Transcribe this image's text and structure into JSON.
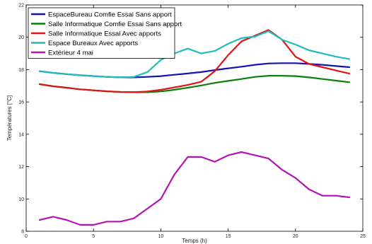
{
  "chart_data": {
    "type": "line",
    "title": "",
    "xlabel": "Temps (h)",
    "ylabel": "Températures [°C]",
    "xlim": [
      0,
      25
    ],
    "ylim": [
      8,
      22
    ],
    "xticks": [
      0,
      5,
      10,
      15,
      20,
      25
    ],
    "yticks": [
      8,
      10,
      12,
      14,
      16,
      18,
      20,
      22
    ],
    "grid": false,
    "legend_position": "top-left",
    "x": [
      1,
      2,
      3,
      4,
      5,
      6,
      7,
      8,
      9,
      10,
      11,
      12,
      13,
      14,
      15,
      16,
      17,
      18,
      19,
      20,
      21,
      22,
      23,
      24
    ],
    "series": [
      {
        "name": "EspaceBureau Comfie Essai Sans apport",
        "color": "#1414b4",
        "values": [
          17.9,
          17.8,
          17.72,
          17.65,
          17.6,
          17.55,
          17.52,
          17.52,
          17.55,
          17.6,
          17.68,
          17.76,
          17.85,
          17.97,
          18.08,
          18.18,
          18.3,
          18.38,
          18.4,
          18.4,
          18.35,
          18.3,
          18.22,
          18.15
        ]
      },
      {
        "name": "Salle Informatique Comfie Essai Sans apport",
        "color": "#0c7e0c",
        "values": [
          17.1,
          16.97,
          16.88,
          16.78,
          16.72,
          16.66,
          16.62,
          16.6,
          16.6,
          16.65,
          16.75,
          16.88,
          17.02,
          17.18,
          17.3,
          17.42,
          17.55,
          17.62,
          17.62,
          17.6,
          17.52,
          17.42,
          17.32,
          17.22
        ]
      },
      {
        "name": "Salle Informatique Essai Avec apports",
        "color": "#e01414",
        "values": [
          17.1,
          16.97,
          16.88,
          16.78,
          16.72,
          16.66,
          16.62,
          16.6,
          16.65,
          16.75,
          16.9,
          17.05,
          17.25,
          17.9,
          18.9,
          19.75,
          20.1,
          20.45,
          19.85,
          18.8,
          18.35,
          18.15,
          17.95,
          17.75
        ]
      },
      {
        "name": "Espace Bureaux Avec apports",
        "color": "#1fbcbc",
        "values": [
          17.9,
          17.8,
          17.72,
          17.65,
          17.6,
          17.55,
          17.52,
          17.55,
          17.85,
          18.6,
          19.0,
          19.3,
          19.0,
          19.15,
          19.6,
          19.95,
          20.05,
          20.38,
          19.85,
          19.55,
          19.2,
          19.0,
          18.8,
          18.65
        ]
      },
      {
        "name": "Extérieur 4 mai",
        "color": "#b414b4",
        "values": [
          8.7,
          8.9,
          8.7,
          8.4,
          8.4,
          8.6,
          8.6,
          8.8,
          9.4,
          10.0,
          11.5,
          12.6,
          12.6,
          12.3,
          12.7,
          12.9,
          12.7,
          12.5,
          11.8,
          11.3,
          10.6,
          10.2,
          10.2,
          10.1
        ]
      }
    ]
  }
}
